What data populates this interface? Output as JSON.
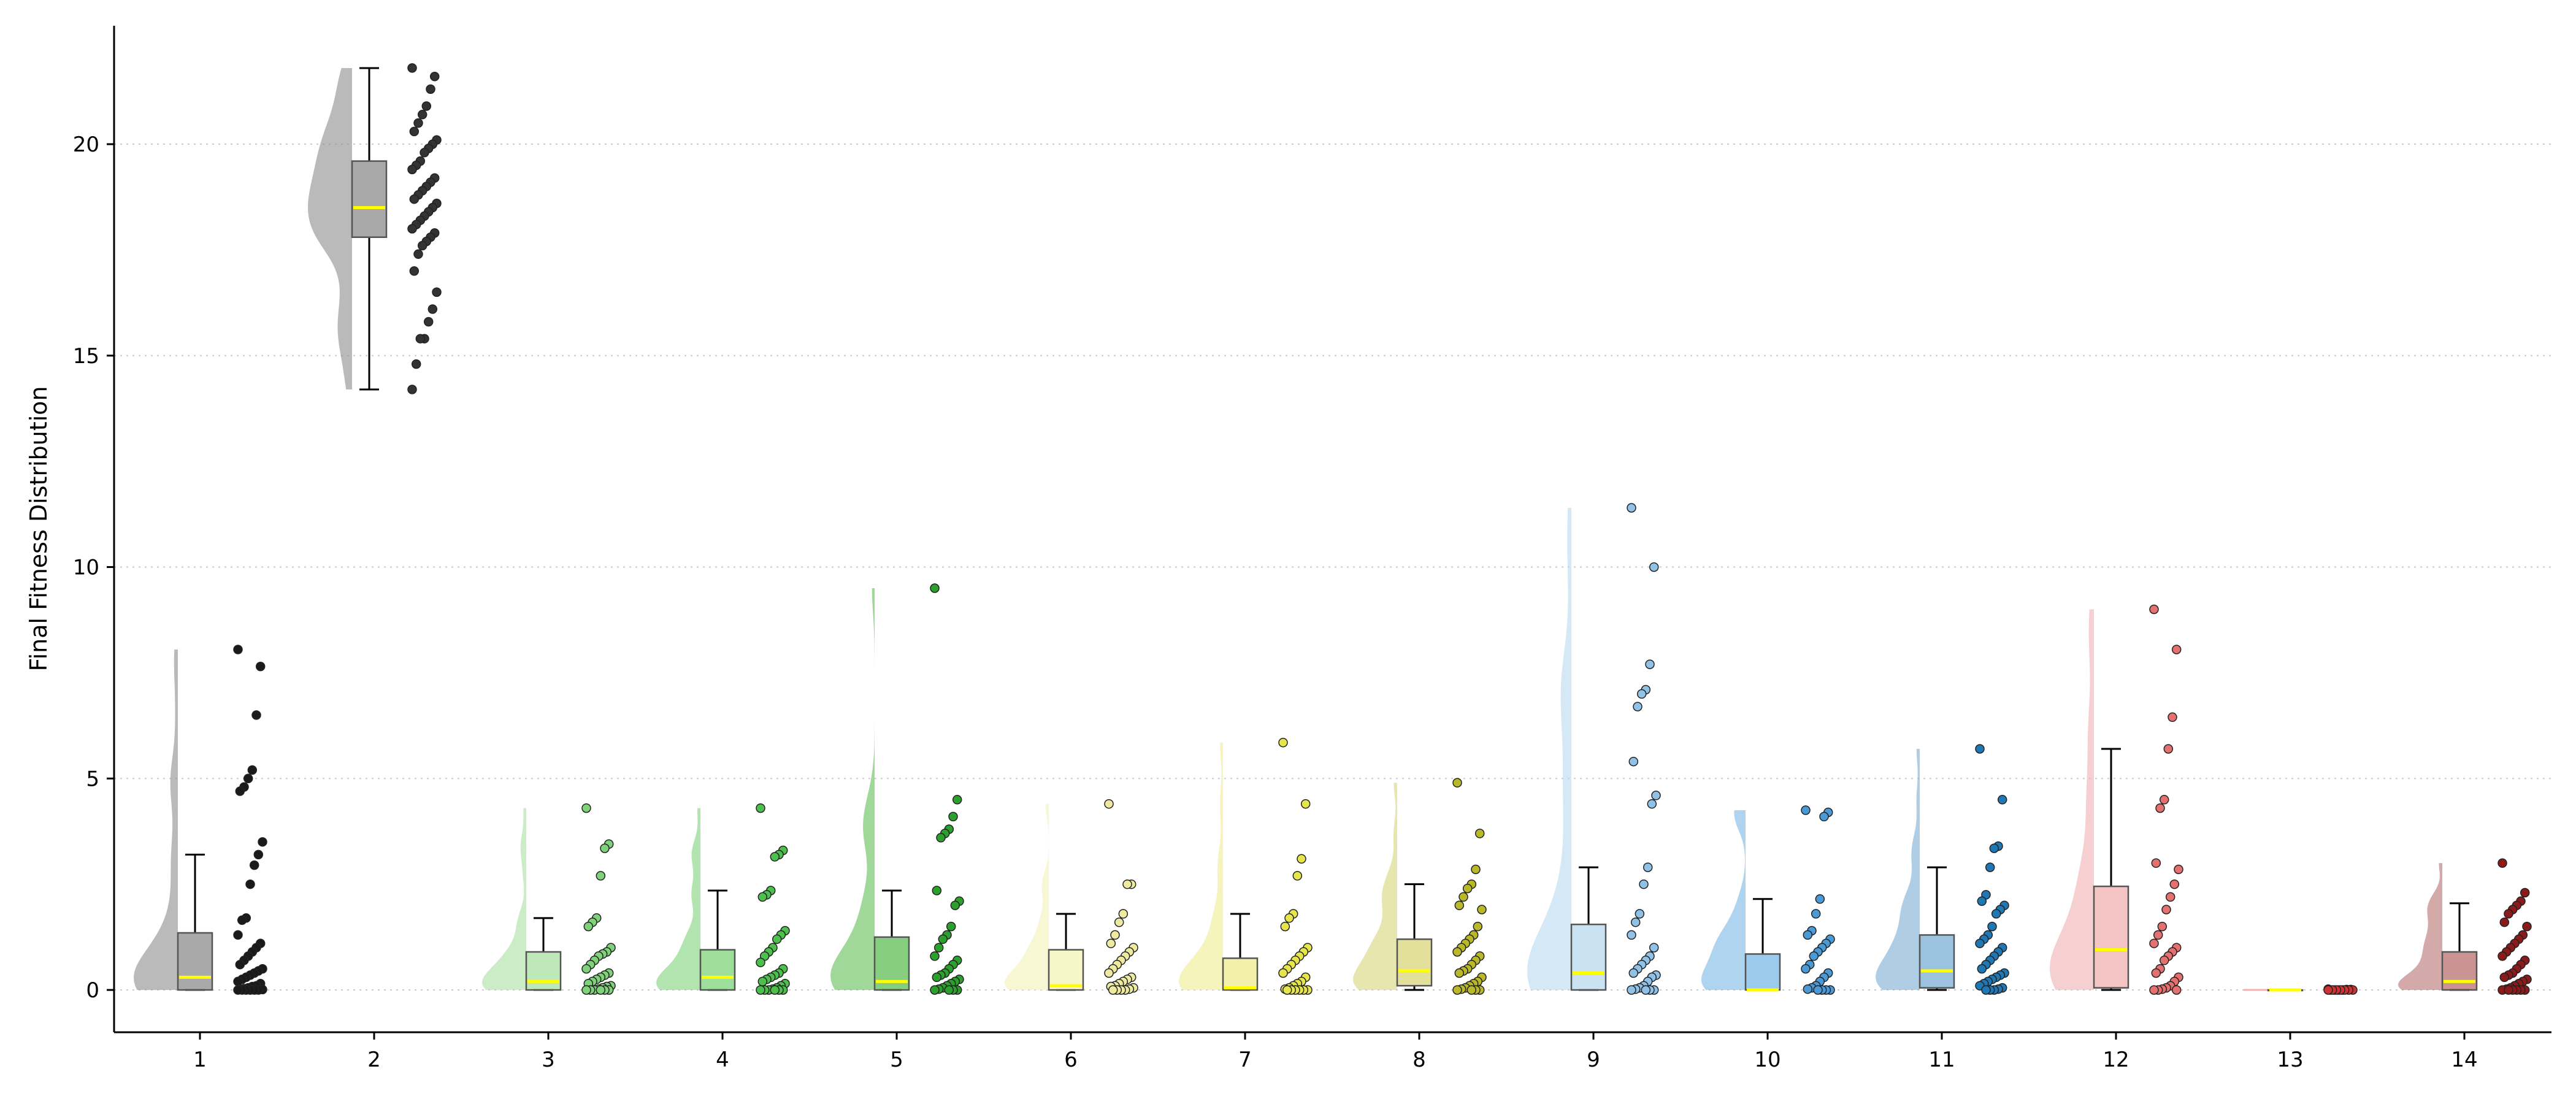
{
  "chart_data": {
    "type": "raincloud",
    "title": "",
    "xlabel": "",
    "ylabel": "Final Fitness Distribution",
    "categories": [
      "1",
      "2",
      "3",
      "4",
      "5",
      "6",
      "7",
      "8",
      "9",
      "10",
      "11",
      "12",
      "13",
      "14"
    ],
    "ylim": [
      -1.0,
      22.8
    ],
    "yticks": [
      0,
      5,
      10,
      15,
      20
    ],
    "grid": "y-dotted",
    "series": [
      {
        "category": "1",
        "color": "#8c8c8c",
        "dot_color": "#1a1a1a",
        "min": 0.0,
        "q1": 0.0,
        "median": 0.3,
        "q3": 1.35,
        "whisker_high": 3.2,
        "max": 8.05,
        "points": [
          8.05,
          7.65,
          6.5,
          5.2,
          5.0,
          4.8,
          4.7,
          3.5,
          3.2,
          2.95,
          2.5,
          1.7,
          1.65,
          1.3,
          1.1,
          1.0,
          0.9,
          0.8,
          0.7,
          0.6,
          0.5,
          0.45,
          0.4,
          0.35,
          0.3,
          0.25,
          0.2,
          0.15,
          0.1,
          0.08,
          0.05,
          0.03,
          0.02,
          0.01,
          0.0,
          0.0,
          0.0,
          0.0,
          0.0,
          0.0
        ]
      },
      {
        "category": "2",
        "color": "#8c8c8c",
        "dot_color": "#333333",
        "min": 14.2,
        "q1": 17.8,
        "median": 18.5,
        "q3": 19.6,
        "whisker_high": 21.8,
        "max": 21.8,
        "points": [
          21.8,
          21.6,
          21.3,
          20.9,
          20.7,
          20.5,
          20.3,
          20.1,
          20.0,
          19.9,
          19.8,
          19.6,
          19.5,
          19.4,
          19.2,
          19.1,
          19.0,
          18.9,
          18.8,
          18.7,
          18.6,
          18.5,
          18.4,
          18.3,
          18.2,
          18.1,
          18.0,
          17.9,
          17.8,
          17.7,
          17.6,
          17.4,
          17.0,
          16.5,
          16.1,
          15.8,
          15.4,
          15.4,
          14.8,
          14.2
        ]
      },
      {
        "category": "3",
        "color": "#a8e0a0",
        "dot_color": "#7fd17a",
        "min": 0.0,
        "q1": 0.0,
        "median": 0.2,
        "q3": 0.9,
        "whisker_high": 1.7,
        "max": 4.3,
        "points": [
          4.3,
          3.45,
          3.35,
          2.7,
          1.7,
          1.6,
          1.5,
          1.0,
          0.9,
          0.85,
          0.8,
          0.7,
          0.6,
          0.5,
          0.4,
          0.35,
          0.3,
          0.25,
          0.2,
          0.15,
          0.1,
          0.08,
          0.05,
          0.02,
          0.0,
          0.0,
          0.0,
          0.0,
          0.0,
          0.0
        ]
      },
      {
        "category": "4",
        "color": "#7fd27a",
        "dot_color": "#4cbf4c",
        "min": 0.0,
        "q1": 0.0,
        "median": 0.3,
        "q3": 0.95,
        "whisker_high": 2.35,
        "max": 4.3,
        "points": [
          4.3,
          3.3,
          3.2,
          3.15,
          2.35,
          2.25,
          2.2,
          1.4,
          1.3,
          1.2,
          1.0,
          0.9,
          0.8,
          0.65,
          0.5,
          0.4,
          0.35,
          0.3,
          0.25,
          0.2,
          0.15,
          0.1,
          0.05,
          0.02,
          0.0,
          0.0,
          0.0,
          0.0,
          0.0,
          0.0
        ]
      },
      {
        "category": "5",
        "color": "#5fbe55",
        "dot_color": "#2ca02c",
        "min": 0.0,
        "q1": 0.0,
        "median": 0.2,
        "q3": 1.25,
        "whisker_high": 2.35,
        "max": 9.5,
        "points": [
          9.5,
          4.5,
          4.1,
          3.8,
          3.7,
          3.6,
          2.35,
          2.1,
          2.0,
          1.5,
          1.3,
          1.2,
          1.0,
          0.8,
          0.7,
          0.6,
          0.5,
          0.4,
          0.35,
          0.3,
          0.25,
          0.2,
          0.15,
          0.1,
          0.05,
          0.02,
          0.0,
          0.0,
          0.0,
          0.0
        ]
      },
      {
        "category": "6",
        "color": "#f4f2b8",
        "dot_color": "#eeeba0",
        "min": 0.0,
        "q1": 0.0,
        "median": 0.1,
        "q3": 0.95,
        "whisker_high": 1.8,
        "max": 4.4,
        "points": [
          4.4,
          2.5,
          2.5,
          1.8,
          1.6,
          1.3,
          1.1,
          1.0,
          0.9,
          0.8,
          0.7,
          0.6,
          0.5,
          0.4,
          0.3,
          0.25,
          0.2,
          0.15,
          0.1,
          0.08,
          0.05,
          0.02,
          0.0,
          0.0,
          0.0,
          0.0
        ]
      },
      {
        "category": "7",
        "color": "#ecec90",
        "dot_color": "#e6e64c",
        "min": 0.0,
        "q1": 0.0,
        "median": 0.05,
        "q3": 0.75,
        "whisker_high": 1.8,
        "max": 5.85,
        "points": [
          5.85,
          4.4,
          3.1,
          2.7,
          1.8,
          1.7,
          1.5,
          1.0,
          0.9,
          0.8,
          0.7,
          0.6,
          0.5,
          0.4,
          0.3,
          0.2,
          0.15,
          0.1,
          0.05,
          0.02,
          0.0,
          0.0,
          0.0,
          0.0,
          0.0,
          0.0
        ]
      },
      {
        "category": "8",
        "color": "#d8d67a",
        "dot_color": "#b8b828",
        "min": 0.0,
        "q1": 0.1,
        "median": 0.45,
        "q3": 1.2,
        "whisker_high": 2.5,
        "max": 4.9,
        "points": [
          4.9,
          3.7,
          2.85,
          2.5,
          2.4,
          2.2,
          2.0,
          1.9,
          1.5,
          1.3,
          1.2,
          1.1,
          1.0,
          0.9,
          0.8,
          0.7,
          0.6,
          0.5,
          0.45,
          0.4,
          0.3,
          0.2,
          0.15,
          0.1,
          0.05,
          0.02,
          0.0,
          0.0,
          0.0,
          0.0
        ]
      },
      {
        "category": "9",
        "color": "#b8d8ee",
        "dot_color": "#90c2e8",
        "min": 0.0,
        "q1": 0.0,
        "median": 0.4,
        "q3": 1.55,
        "whisker_high": 2.9,
        "max": 11.4,
        "points": [
          11.4,
          10.0,
          7.7,
          7.1,
          7.0,
          6.7,
          5.4,
          4.6,
          4.4,
          2.9,
          2.5,
          1.8,
          1.6,
          1.3,
          1.0,
          0.8,
          0.7,
          0.6,
          0.5,
          0.4,
          0.35,
          0.3,
          0.2,
          0.1,
          0.05,
          0.02,
          0.0,
          0.0,
          0.0,
          0.0
        ]
      },
      {
        "category": "10",
        "color": "#7ab8e6",
        "dot_color": "#4a9ad8",
        "min": 0.0,
        "q1": 0.0,
        "median": 0.0,
        "q3": 0.85,
        "whisker_high": 2.15,
        "max": 4.25,
        "points": [
          4.25,
          4.2,
          4.1,
          2.15,
          1.8,
          1.4,
          1.3,
          1.2,
          1.1,
          1.0,
          0.9,
          0.8,
          0.6,
          0.5,
          0.4,
          0.3,
          0.2,
          0.1,
          0.05,
          0.02,
          0.0,
          0.0,
          0.0,
          0.0
        ]
      },
      {
        "category": "11",
        "color": "#7aaed4",
        "dot_color": "#1f77b4",
        "min": 0.0,
        "q1": 0.05,
        "median": 0.45,
        "q3": 1.3,
        "whisker_high": 2.9,
        "max": 5.7,
        "points": [
          5.7,
          4.5,
          3.4,
          3.35,
          2.9,
          2.25,
          2.1,
          2.0,
          1.9,
          1.8,
          1.5,
          1.3,
          1.2,
          1.1,
          1.0,
          0.9,
          0.8,
          0.7,
          0.6,
          0.5,
          0.4,
          0.35,
          0.3,
          0.25,
          0.2,
          0.15,
          0.1,
          0.05,
          0.02,
          0.0,
          0.0,
          0.0
        ]
      },
      {
        "category": "12",
        "color": "#f0b0b0",
        "dot_color": "#e57070",
        "min": 0.0,
        "q1": 0.05,
        "median": 0.95,
        "q3": 2.45,
        "whisker_high": 5.7,
        "max": 9.0,
        "points": [
          9.0,
          8.05,
          6.45,
          5.7,
          4.5,
          4.3,
          3.0,
          2.85,
          2.5,
          2.2,
          1.9,
          1.5,
          1.3,
          1.1,
          1.0,
          0.9,
          0.8,
          0.7,
          0.5,
          0.4,
          0.3,
          0.2,
          0.1,
          0.05,
          0.02,
          0.0,
          0.0,
          0.0
        ]
      },
      {
        "category": "13",
        "color": "#f0b0b0",
        "dot_color": "#cc3333",
        "min": 0.0,
        "q1": 0.0,
        "median": 0.0,
        "q3": 0.0,
        "whisker_high": 0.0,
        "max": 0.02,
        "points": [
          0.02,
          0.01,
          0.01,
          0.0,
          0.0,
          0.0,
          0.0,
          0.0,
          0.0,
          0.0,
          0.0,
          0.0,
          0.0,
          0.0
        ]
      },
      {
        "category": "14",
        "color": "#b87070",
        "dot_color": "#8b1a1a",
        "min": 0.0,
        "q1": 0.0,
        "median": 0.2,
        "q3": 0.9,
        "whisker_high": 2.05,
        "max": 3.0,
        "points": [
          3.0,
          2.3,
          2.1,
          2.0,
          1.9,
          1.8,
          1.6,
          1.5,
          1.3,
          1.2,
          1.1,
          1.0,
          0.9,
          0.8,
          0.7,
          0.6,
          0.5,
          0.4,
          0.35,
          0.3,
          0.25,
          0.2,
          0.15,
          0.1,
          0.05,
          0.02,
          0.0,
          0.0,
          0.0,
          0.0,
          0.0,
          0.0
        ]
      }
    ]
  }
}
